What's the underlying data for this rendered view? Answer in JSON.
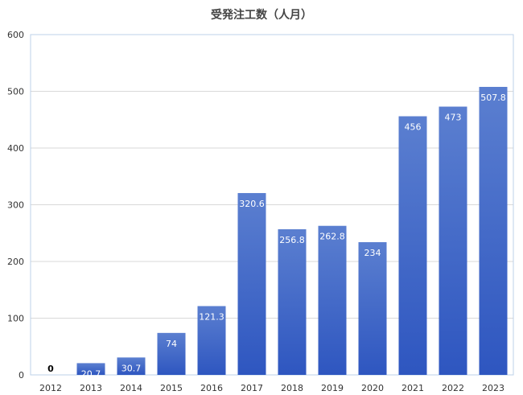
{
  "chart_data": {
    "type": "bar",
    "title": "受発注工数（人月）",
    "xlabel": "",
    "ylabel": "",
    "categories": [
      "2012",
      "2013",
      "2014",
      "2015",
      "2016",
      "2017",
      "2018",
      "2019",
      "2020",
      "2021",
      "2022",
      "2023"
    ],
    "values": [
      0,
      20.7,
      30.7,
      74,
      121.3,
      320.6,
      256.8,
      262.8,
      234,
      456,
      473,
      507.8
    ],
    "data_labels": [
      "0",
      "20.7",
      "30.7",
      "74",
      "121.3",
      "320.6",
      "256.8",
      "262.8",
      "234",
      "456",
      "473",
      "507.8"
    ],
    "ylim": [
      0,
      600
    ],
    "yticks": [
      "0",
      "100",
      "200",
      "300",
      "400",
      "500",
      "600"
    ],
    "grid": true,
    "legend": "none",
    "colors": {
      "bar_top": "#5b7fd0",
      "bar_bottom": "#2e56c0",
      "grid": "#d9d9d9",
      "label_inside": "#ffffff",
      "label_outside": "#000000"
    }
  }
}
